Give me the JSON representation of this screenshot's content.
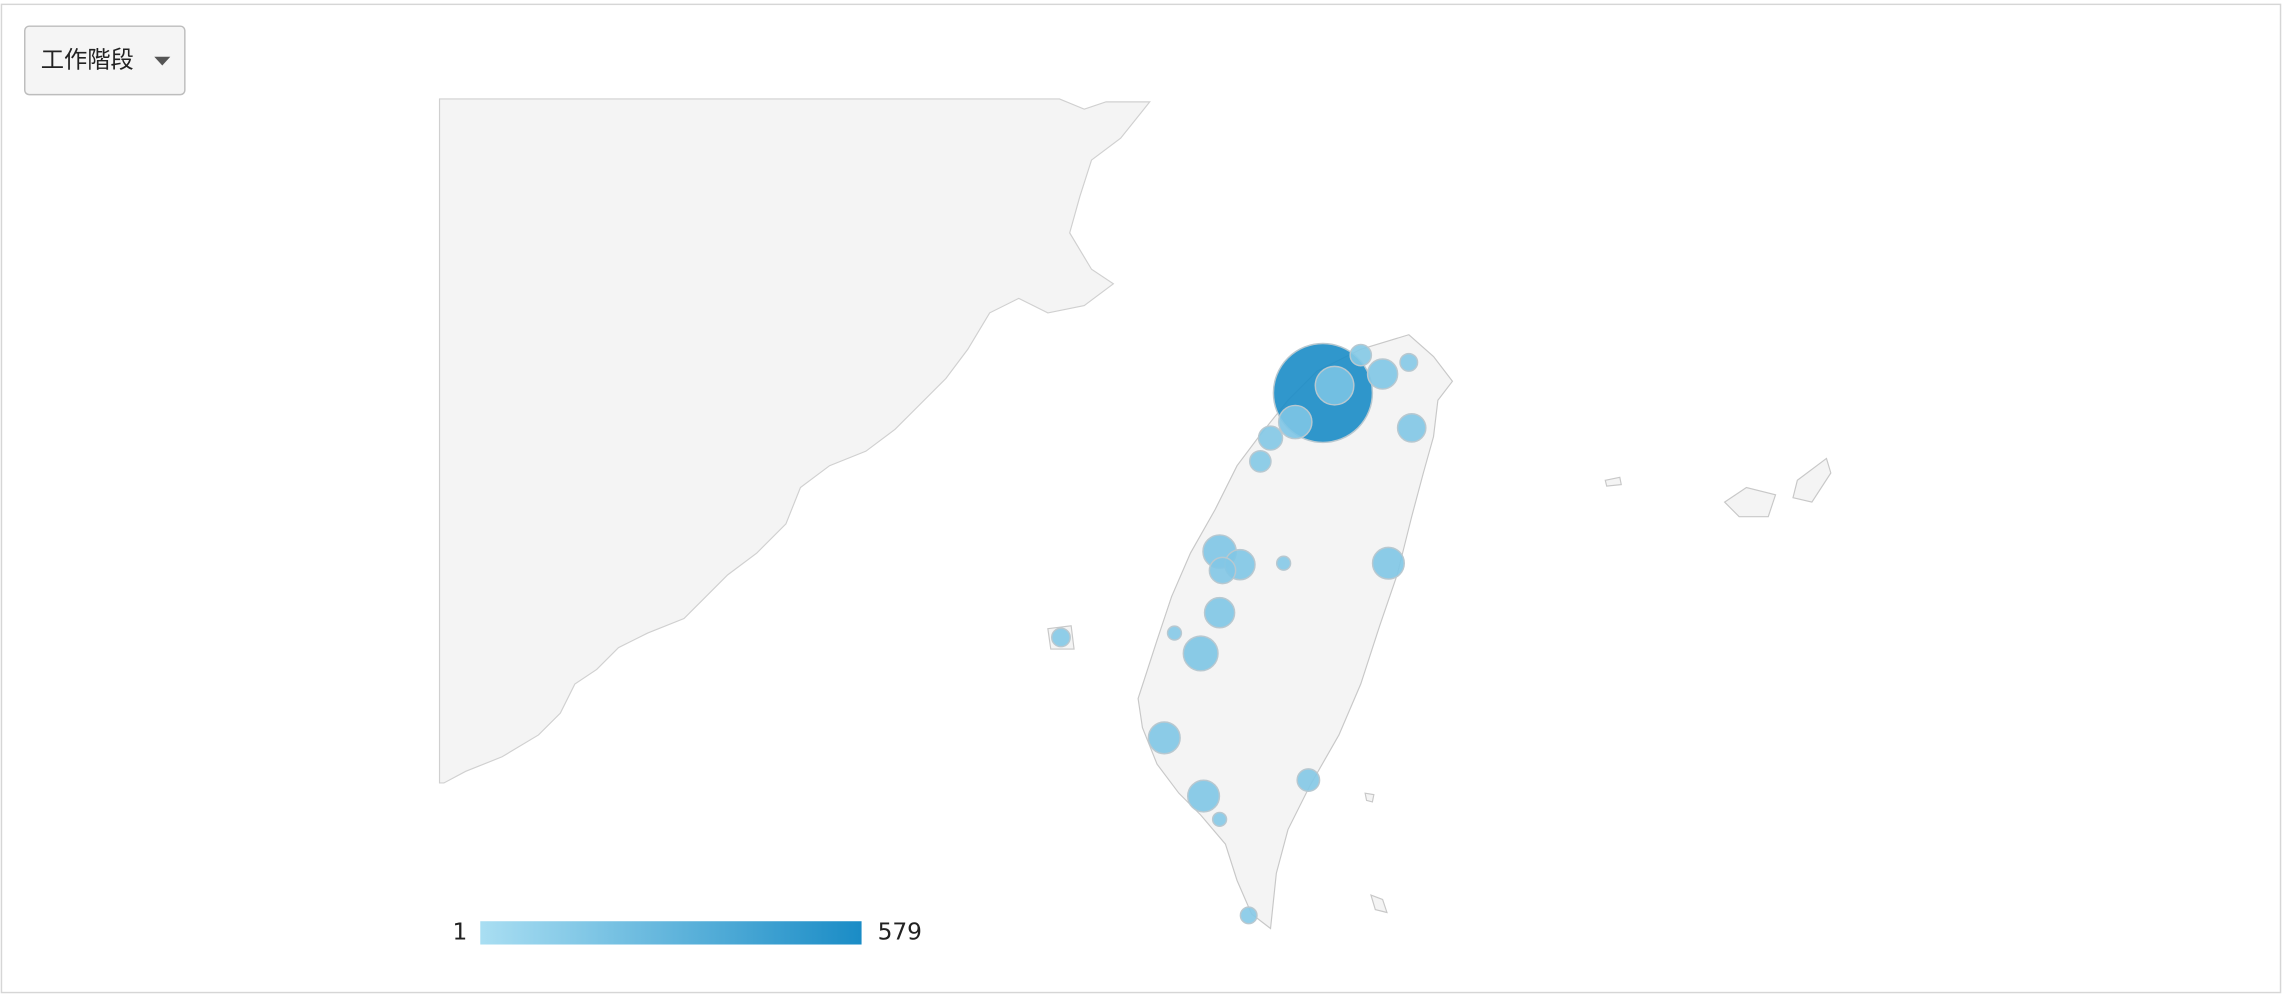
{
  "dropdown": {
    "label": "工作階段"
  },
  "chart_data": {
    "type": "bubble-map",
    "color_scale": {
      "min": 1,
      "max": 579,
      "colors": [
        "#a9def2",
        "#1a8cc6"
      ]
    },
    "markers": {
      "values": [
        579,
        60,
        30,
        10,
        5,
        25,
        40,
        15,
        10,
        40,
        30,
        20,
        2,
        35,
        30,
        45,
        2,
        6,
        35,
        35,
        2,
        12,
        4
      ]
    }
  }
}
